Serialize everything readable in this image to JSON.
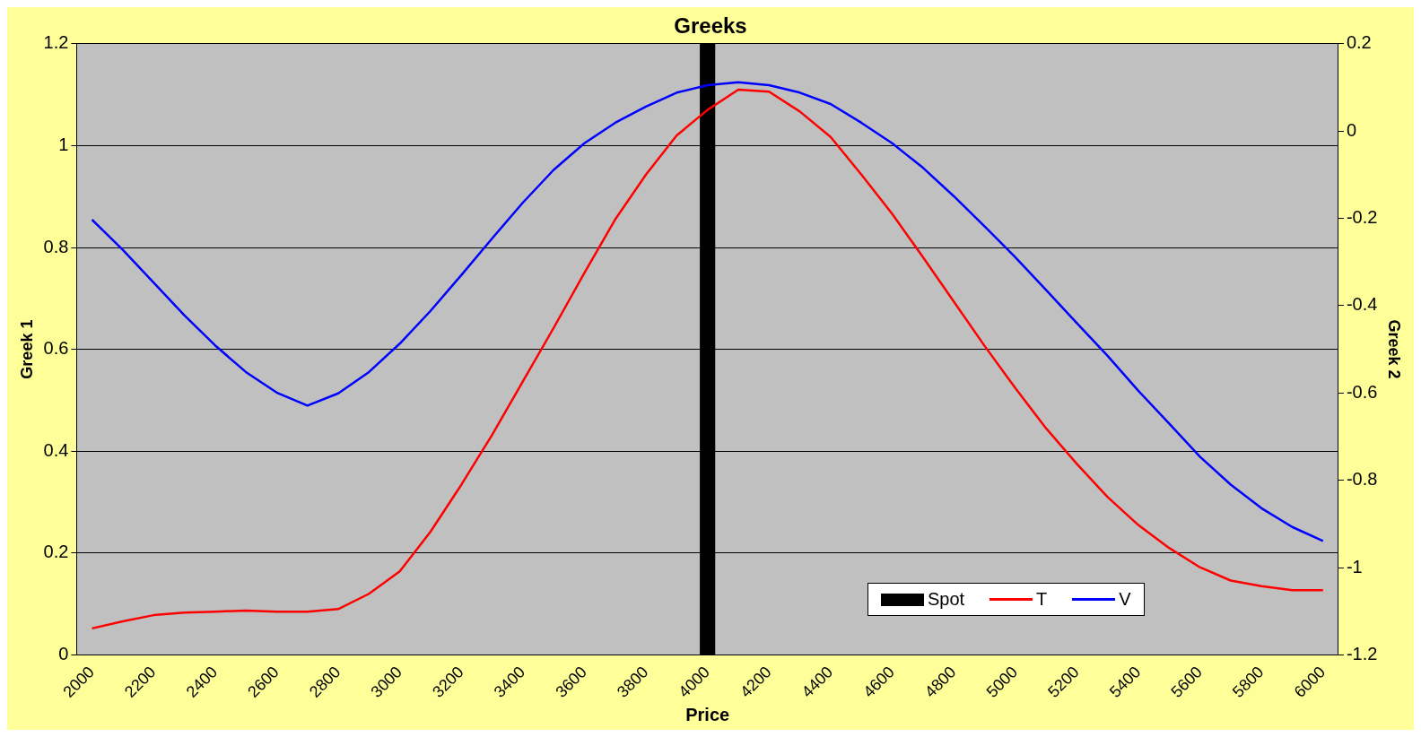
{
  "chart_data": {
    "type": "line",
    "title": "Greeks",
    "xlabel": "Price",
    "ylabel": "Greek 1",
    "y2label": "Greek 2",
    "categories": [
      "2000",
      null,
      "2200",
      null,
      "2400",
      null,
      "2600",
      null,
      "2800",
      null,
      "3000",
      null,
      "3200",
      null,
      "3400",
      null,
      "3600",
      null,
      "3800",
      null,
      "4000",
      null,
      "4200",
      null,
      "4400",
      null,
      "4600",
      null,
      "4800",
      null,
      "5000",
      null,
      "5200",
      null,
      "5400",
      null,
      "5600",
      null,
      "5800",
      null,
      "6000"
    ],
    "series": [
      {
        "name": "Spot",
        "type": "bar",
        "color": "#000000",
        "values": [
          null,
          null,
          null,
          null,
          null,
          null,
          null,
          null,
          null,
          null,
          null,
          null,
          null,
          null,
          null,
          null,
          null,
          null,
          null,
          null,
          1.2,
          null,
          null,
          null,
          null,
          null,
          null,
          null,
          null,
          null,
          null,
          null,
          null,
          null,
          null,
          null,
          null,
          null,
          null,
          null,
          null
        ]
      },
      {
        "name": "T",
        "color": "#ff0000",
        "values": [
          0.052,
          0.066,
          0.078,
          0.083,
          0.085,
          0.087,
          0.085,
          0.085,
          0.09,
          0.12,
          0.164,
          0.242,
          0.334,
          0.432,
          0.537,
          0.642,
          0.75,
          0.855,
          0.943,
          1.02,
          1.07,
          1.11,
          1.106,
          1.067,
          1.017,
          0.943,
          0.866,
          0.781,
          0.694,
          0.607,
          0.524,
          0.445,
          0.375,
          0.31,
          0.255,
          0.21,
          0.172,
          0.146,
          0.135,
          0.127,
          0.127
        ]
      },
      {
        "name": "V",
        "axis": "y2",
        "color": "#0000ff",
        "values": [
          -0.203,
          -0.272,
          -0.347,
          -0.422,
          -0.491,
          -0.552,
          -0.599,
          -0.629,
          -0.601,
          -0.552,
          -0.487,
          -0.412,
          -0.33,
          -0.246,
          -0.164,
          -0.089,
          -0.028,
          0.019,
          0.056,
          0.088,
          0.105,
          0.112,
          0.105,
          0.088,
          0.062,
          0.019,
          -0.028,
          -0.084,
          -0.149,
          -0.218,
          -0.289,
          -0.364,
          -0.44,
          -0.515,
          -0.595,
          -0.67,
          -0.746,
          -0.81,
          -0.864,
          -0.907,
          -0.939
        ]
      }
    ],
    "ylim": [
      0,
      1.2
    ],
    "yticks": [
      0,
      0.2,
      0.4,
      0.6,
      0.8,
      1,
      1.2
    ],
    "y2lim": [
      -1.2,
      0.2
    ],
    "y2ticks": [
      -1.2,
      -1,
      -0.8,
      -0.6,
      -0.4,
      -0.2,
      0,
      0.2
    ],
    "grid": "y",
    "legend": "bottom right",
    "marker": "none"
  }
}
